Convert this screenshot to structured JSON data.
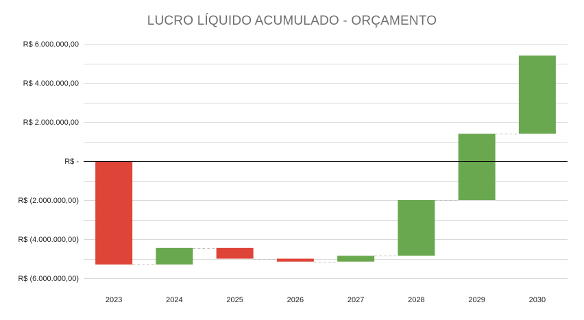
{
  "chart_data": {
    "type": "waterfall",
    "title": "LUCRO LÍQUIDO ACUMULADO - ORÇAMENTO",
    "xlabel": "",
    "ylabel": "",
    "categories": [
      "2023",
      "2024",
      "2025",
      "2026",
      "2027",
      "2028",
      "2029",
      "2030"
    ],
    "start": [
      0,
      -5300000,
      -4450000,
      -5000000,
      -5150000,
      -4850000,
      -2000000,
      1400000
    ],
    "end": [
      -5300000,
      -4450000,
      -5000000,
      -5150000,
      -4850000,
      -2000000,
      1400000,
      5400000
    ],
    "ylim": [
      -6000000,
      6000000
    ],
    "y_ticks": [
      6000000,
      4000000,
      2000000,
      0,
      -2000000,
      -4000000,
      -6000000
    ],
    "y_tick_labels": [
      "R$  6.000.000,00",
      "R$  4.000.000,00",
      "R$  2.000.000,00",
      "R$  -",
      "R$  (2.000.000,00)",
      "R$  (4.000.000,00)",
      "R$  (6.000.000,00)"
    ],
    "colors": {
      "increase": "#6aa84f",
      "decrease": "#de4437",
      "gridline": "#d9d9d9",
      "zero_line": "#000000",
      "connector": "#bfbfbf"
    },
    "grid": true,
    "legend": "none"
  }
}
